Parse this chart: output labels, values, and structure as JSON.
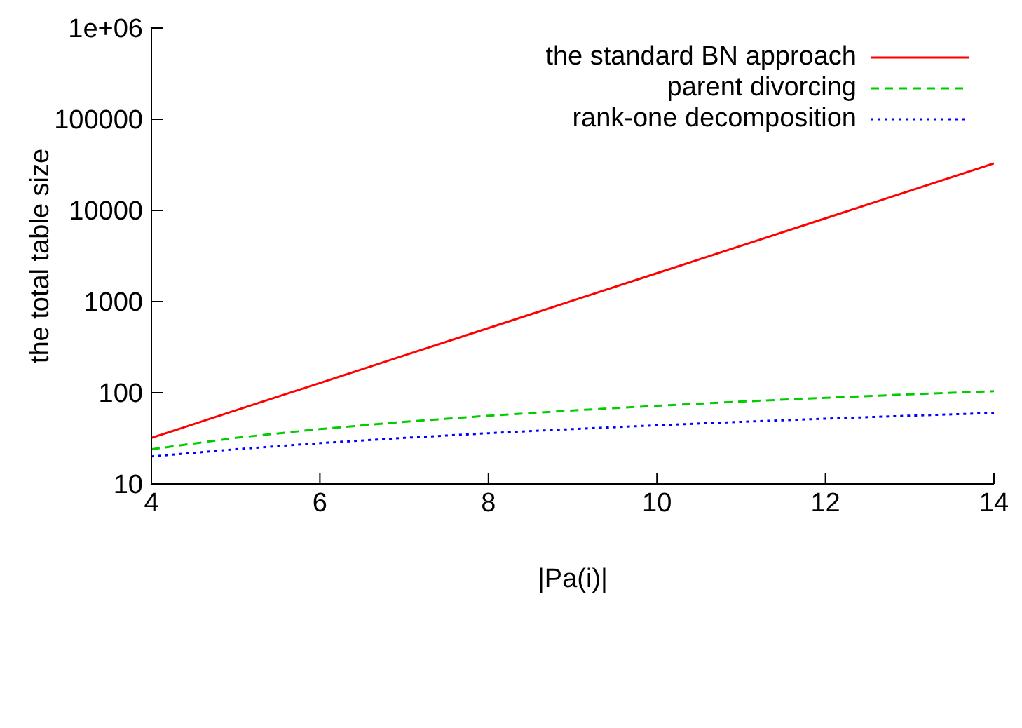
{
  "chart_data": {
    "type": "line",
    "xlabel": "|Pa(i)|",
    "ylabel": "the total table size",
    "x": [
      4,
      5,
      6,
      7,
      8,
      9,
      10,
      11,
      12,
      13,
      14
    ],
    "series": [
      {
        "name": "the standard BN approach",
        "color": "#ff0000",
        "line_style": "solid",
        "values": [
          32,
          64,
          128,
          256,
          512,
          1024,
          2048,
          4096,
          8192,
          16384,
          32768
        ]
      },
      {
        "name": "parent divorcing",
        "color": "#00cc00",
        "line_style": "dashed",
        "values": [
          24,
          32,
          40,
          48,
          56,
          64,
          72,
          80,
          88,
          96,
          104
        ]
      },
      {
        "name": "rank-one decomposition",
        "color": "#0000ff",
        "line_style": "dotted",
        "values": [
          20,
          24,
          28,
          32,
          36,
          40,
          44,
          48,
          52,
          56,
          60
        ]
      }
    ],
    "log": "y",
    "xlim": [
      4,
      14
    ],
    "xticks": [
      4,
      6,
      8,
      10,
      12,
      14
    ],
    "ylim": [
      10,
      1000000
    ],
    "yticks": [
      10,
      100,
      1000,
      10000,
      100000,
      {
        "value": 1000000,
        "label": "1e+06"
      }
    ],
    "grid": false,
    "legend": "top right",
    "marker": "none"
  }
}
